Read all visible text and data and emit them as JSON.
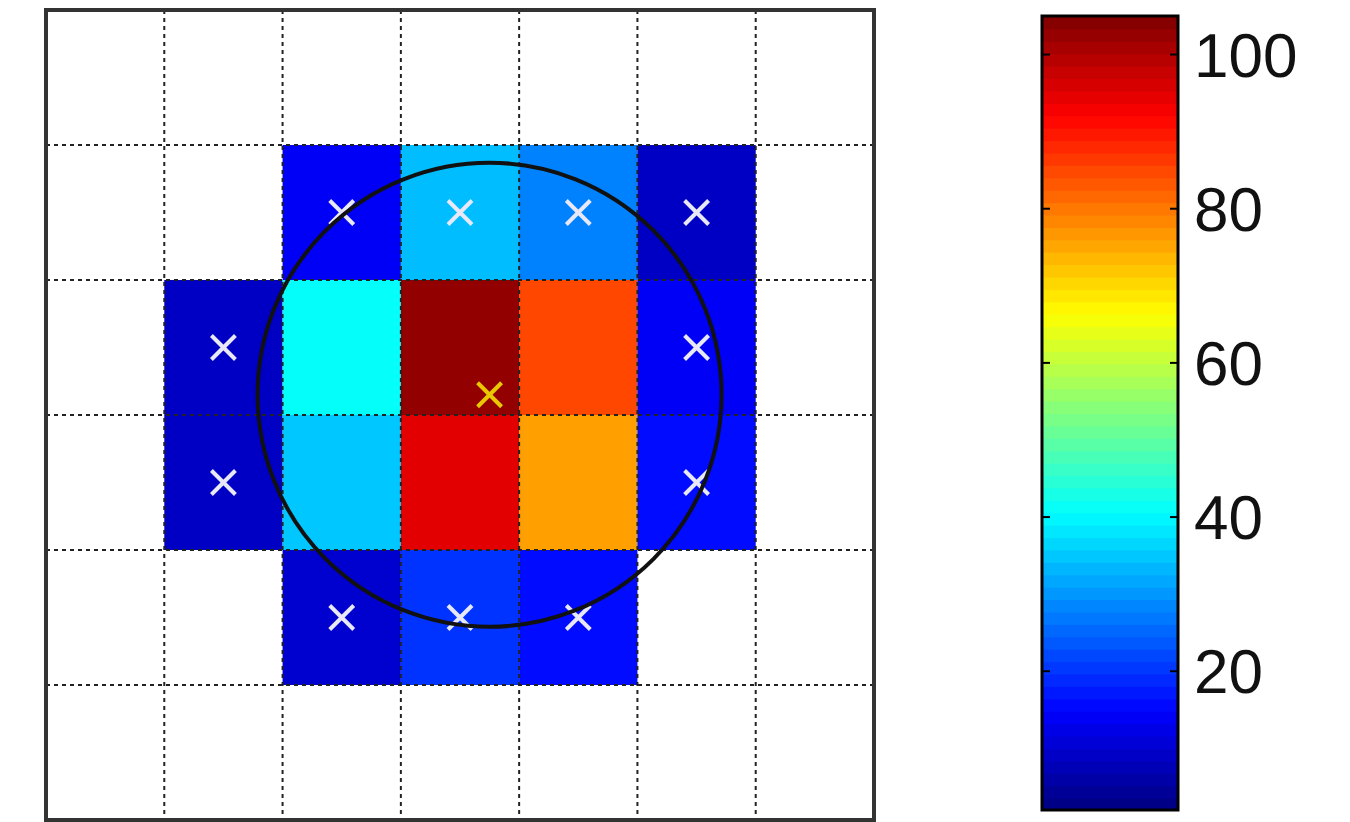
{
  "chart_data": {
    "type": "heatmap",
    "categories": [
      null,
      null,
      null,
      null,
      null
    ],
    "y_categories": [
      null,
      null,
      null,
      null
    ],
    "cells": [
      [
        null,
        14,
        34,
        28,
        9
      ],
      [
        9,
        41,
        103,
        85,
        14
      ],
      [
        9,
        35,
        95,
        76,
        16
      ],
      [
        null,
        10,
        20,
        16,
        null
      ]
    ],
    "clim": [
      2,
      105
    ],
    "cticks": [
      20,
      40,
      60,
      80,
      100
    ],
    "grid": true
  }
}
